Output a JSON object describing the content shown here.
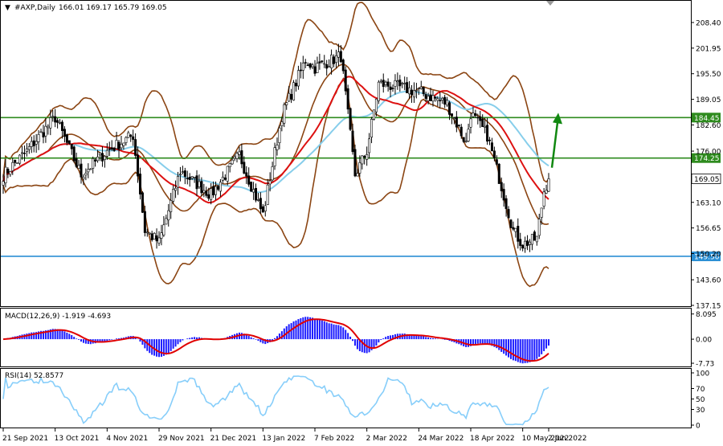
{
  "header": {
    "arrow": "▼",
    "symbol": "#AXP,Daily",
    "ohlc": "166.01 169.17 165.79 169.05"
  },
  "main_axis": {
    "ticks": [
      "208.40",
      "201.95",
      "195.50",
      "189.05",
      "182.60",
      "176.00",
      "169.55",
      "163.10",
      "156.65",
      "150.20",
      "143.60",
      "137.15"
    ],
    "tick_values": [
      208.4,
      201.95,
      195.5,
      189.05,
      182.6,
      176.0,
      169.55,
      163.1,
      156.65,
      150.2,
      143.6,
      137.15
    ],
    "ylim": [
      137.15,
      212.6
    ]
  },
  "levels": [
    {
      "value": 184.45,
      "label": "184.45",
      "color": "#2e8b1e",
      "kind": "resistance"
    },
    {
      "value": 174.25,
      "label": "174.25",
      "color": "#2e8b1e",
      "kind": "support"
    },
    {
      "value": 149.5,
      "label": "149.50",
      "color": "#2b8fd4",
      "kind": "support"
    }
  ],
  "current_price": {
    "value": 169.05,
    "label": "169.05"
  },
  "x_axis": {
    "labels": [
      "21 Sep 2021",
      "13 Oct 2021",
      "4 Nov 2021",
      "29 Nov 2021",
      "21 Dec 2021",
      "13 Jan 2022",
      "7 Feb 2022",
      "2 Mar 2022",
      "24 Mar 2022",
      "18 Apr 2022",
      "10 May 2022",
      "2 Jun 2022"
    ]
  },
  "macd": {
    "title": "MACD(12,26,9) -1.919 -4.693",
    "ticks": [
      "8.095",
      "0.00",
      "-7.73"
    ],
    "tick_values": [
      8.095,
      0,
      -7.73
    ],
    "ylim": [
      -8.5,
      8.8
    ],
    "hist_color": "#1a1aff",
    "signal_color": "#e00000"
  },
  "rsi": {
    "title": "RSI(14) 52.8577",
    "ticks": [
      "100",
      "70",
      "50",
      "30",
      "0"
    ],
    "tick_values": [
      100,
      70,
      50,
      30,
      0
    ],
    "color": "#87cefa"
  },
  "colors": {
    "bull": "#ffffff",
    "bear": "#000000",
    "bollinger": "#8b4513",
    "ma_fast": "#dd1111",
    "ma_slow": "#87ceeb",
    "arrow": "#118811"
  },
  "chart_data": {
    "type": "line",
    "x": [
      "21 Sep 2021",
      "13 Oct 2021",
      "4 Nov 2021",
      "29 Nov 2021",
      "21 Dec 2021",
      "13 Jan 2022",
      "7 Feb 2022",
      "2 Mar 2022",
      "24 Mar 2022",
      "18 Apr 2022",
      "10 May 2022",
      "2 Jun 2022"
    ],
    "series": [
      {
        "name": "#AXP,Daily",
        "values": [
          170.0,
          184.5,
          173.5,
          153.0,
          165.0,
          160.0,
          197.0,
          176.0,
          191.0,
          185.5,
          152.5,
          169.05
        ]
      }
    ],
    "ylim": [
      137.15,
      212.6
    ],
    "grid": false,
    "legend": "none"
  }
}
